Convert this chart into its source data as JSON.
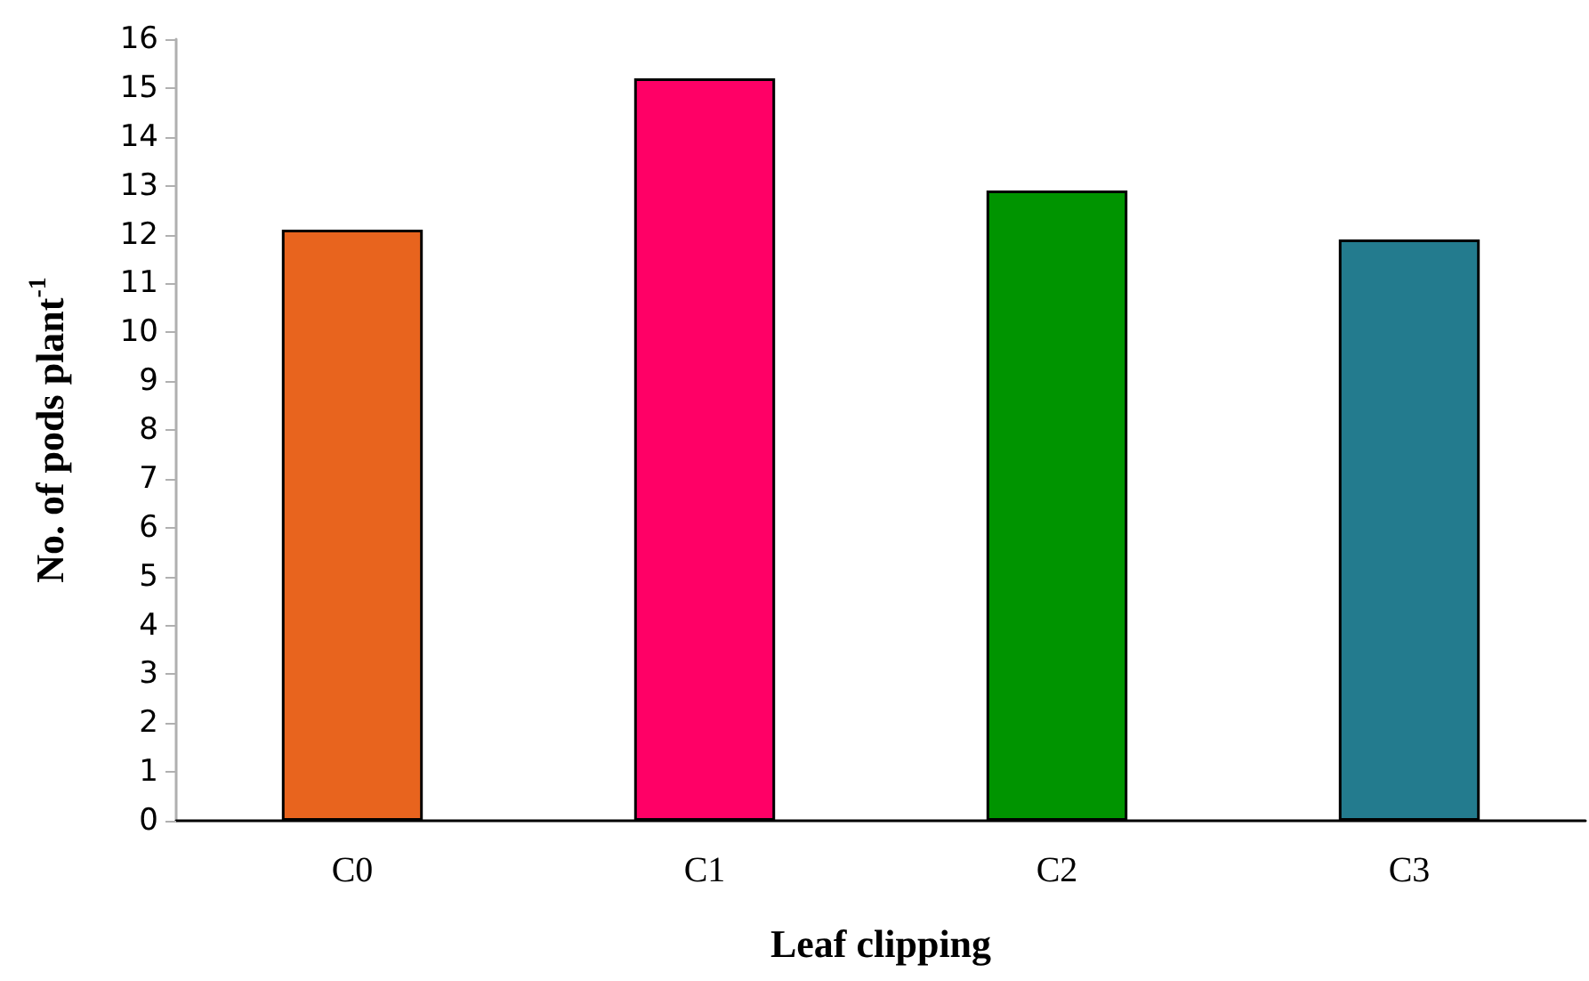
{
  "chart_data": {
    "type": "bar",
    "xlabel": "Leaf clipping",
    "ylabel": "No. of pods plant$^{-1}$",
    "categories": [
      "C0",
      "C1",
      "C2",
      "C3"
    ],
    "values": [
      12.1,
      15.2,
      12.9,
      11.9
    ],
    "colors": [
      "#e8641e",
      "#ff0066",
      "#009400",
      "#237b8e"
    ],
    "ylim": [
      0,
      16
    ],
    "yticks": [
      0,
      1,
      2,
      3,
      4,
      5,
      6,
      7,
      8,
      9,
      10,
      11,
      12,
      13,
      14,
      15,
      16
    ],
    "grid": false
  }
}
